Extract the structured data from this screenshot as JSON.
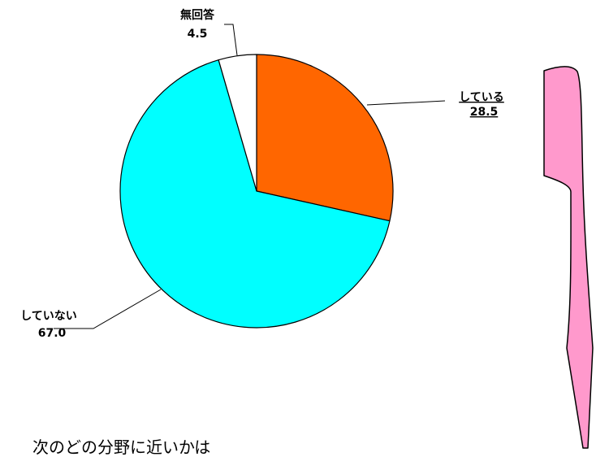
{
  "chart_data": {
    "type": "pie",
    "start": "top",
    "direction": "clockwise",
    "slices": [
      {
        "label": "している",
        "value": 28.5,
        "value_text": "28.5",
        "color": "#FF6600"
      },
      {
        "label": "していない",
        "value": 67.0,
        "value_text": "67.0",
        "color": "#00FFFF"
      },
      {
        "label": "無回答",
        "value": 4.5,
        "value_text": "4.5",
        "color": "#FFFFFF"
      }
    ]
  },
  "decor": {
    "arrow_color": "#FF99CC",
    "outline_color": "#000000"
  },
  "caption": "次のどの分野に近いかは"
}
